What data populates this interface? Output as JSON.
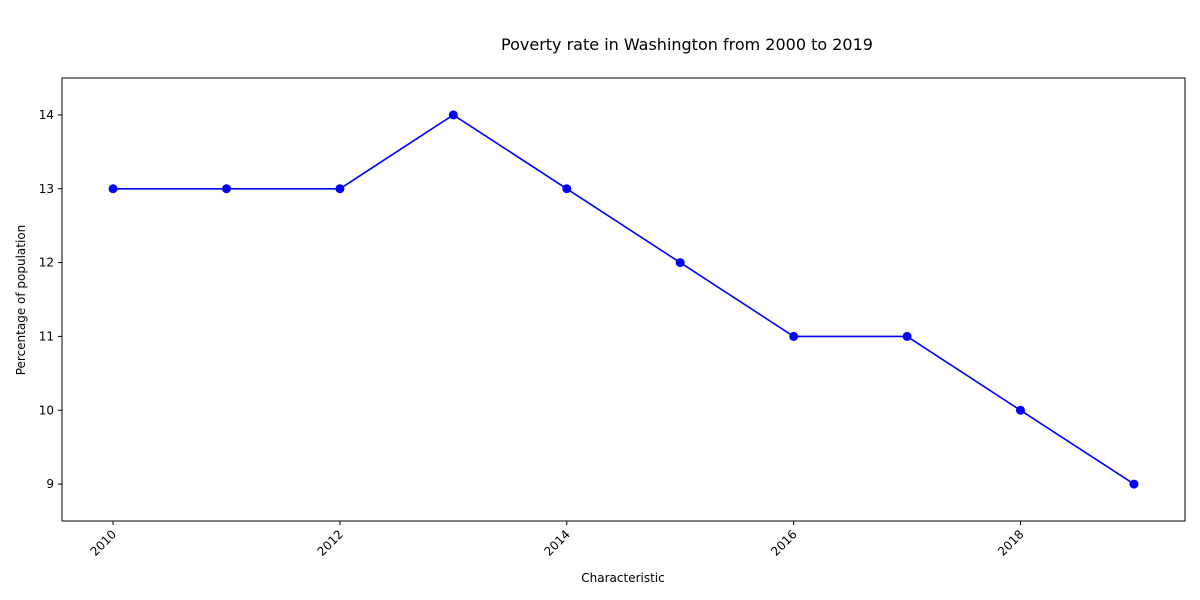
{
  "chart_data": {
    "type": "line",
    "title": "Poverty rate in Washington from 2000 to 2019",
    "xlabel": "Characteristic",
    "ylabel": "Percentage of population",
    "x": [
      2010,
      2011,
      2012,
      2013,
      2014,
      2015,
      2016,
      2017,
      2018,
      2019
    ],
    "values": [
      13,
      13,
      13,
      14,
      13,
      12,
      11,
      11,
      10,
      9
    ],
    "xlim": [
      2009.55,
      2019.45
    ],
    "ylim": [
      8.5,
      14.5
    ],
    "xticks": [
      2010,
      2012,
      2014,
      2016,
      2018
    ],
    "xtick_labels": [
      "2010",
      "2012",
      "2014",
      "2016",
      "2018"
    ],
    "yticks": [
      9,
      10,
      11,
      12,
      13,
      14
    ],
    "ytick_labels": [
      "9",
      "10",
      "11",
      "12",
      "13",
      "14"
    ],
    "grid": false,
    "line_color": "#0000ff",
    "marker_color": "#0000ff"
  }
}
